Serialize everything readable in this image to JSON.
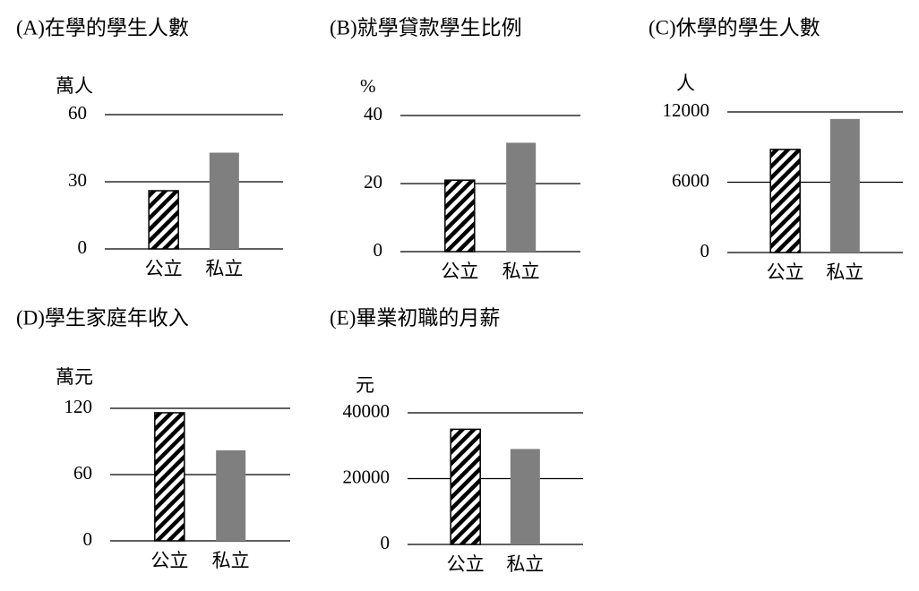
{
  "chart_data": [
    {
      "type": "bar",
      "title": "(A)在學的學生人數",
      "y_label": "萬人",
      "categories": [
        "公立",
        "私立"
      ],
      "values": [
        26,
        43
      ],
      "colors": [
        "#000000",
        "#7f7f7f"
      ],
      "fills": [
        "hatch",
        "solid"
      ],
      "ylim": [
        0,
        60
      ],
      "yticks": [
        0,
        30,
        60
      ],
      "grid": true
    },
    {
      "type": "bar",
      "title": "(B)就學貸款學生比例",
      "y_label": "%",
      "categories": [
        "公立",
        "私立"
      ],
      "values": [
        21,
        32
      ],
      "colors": [
        "#000000",
        "#7f7f7f"
      ],
      "fills": [
        "hatch",
        "solid"
      ],
      "ylim": [
        0,
        40
      ],
      "yticks": [
        0,
        20,
        40
      ],
      "grid": true
    },
    {
      "type": "bar",
      "title": "(C)休學的學生人數",
      "y_label": "人",
      "categories": [
        "公立",
        "私立"
      ],
      "values": [
        8800,
        11400
      ],
      "colors": [
        "#000000",
        "#7f7f7f"
      ],
      "fills": [
        "hatch",
        "solid"
      ],
      "ylim": [
        0,
        12000
      ],
      "yticks": [
        0,
        6000,
        12000
      ],
      "grid": true
    },
    {
      "type": "bar",
      "title": "(D)學生家庭年收入",
      "y_label": "萬元",
      "categories": [
        "公立",
        "私立"
      ],
      "values": [
        116,
        82
      ],
      "colors": [
        "#000000",
        "#7f7f7f"
      ],
      "fills": [
        "hatch",
        "solid"
      ],
      "ylim": [
        0,
        120
      ],
      "yticks": [
        0,
        60,
        120
      ],
      "grid": true
    },
    {
      "type": "bar",
      "title": "(E)畢業初職的月薪",
      "y_label": "元",
      "categories": [
        "公立",
        "私立"
      ],
      "values": [
        35000,
        29000
      ],
      "colors": [
        "#000000",
        "#7f7f7f"
      ],
      "fills": [
        "hatch",
        "solid"
      ],
      "ylim": [
        0,
        40000
      ],
      "yticks": [
        0,
        20000,
        40000
      ],
      "grid": true
    }
  ]
}
